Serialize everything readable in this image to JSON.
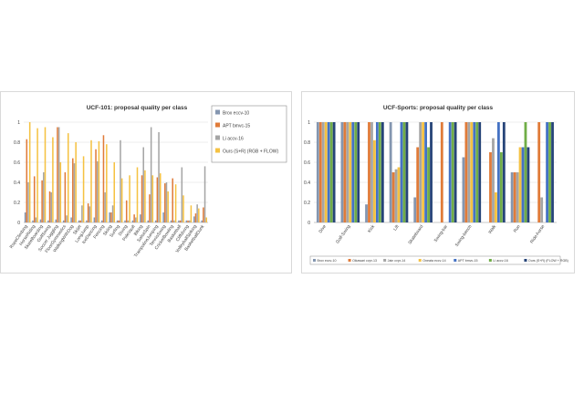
{
  "chart_data": [
    {
      "type": "bar",
      "title": "UCF-101: proposal quality per class",
      "xlabel": "",
      "ylabel": "",
      "ylim": [
        0,
        1
      ],
      "yticks": [
        0,
        0.2,
        0.4,
        0.6,
        0.8,
        1
      ],
      "grid": true,
      "legend": "right",
      "categories": [
        "RopeClimbing",
        "HorseRiding",
        "SkateBoarding",
        "GolfSwing",
        "Soccer Juggling",
        "FloorGymnastics",
        "WalkingWithDog",
        "Skijet",
        "LongJump",
        "IceDancing",
        "Fencing",
        "Skiing",
        "Surfing",
        "Diving",
        "PoleVault",
        "Biking",
        "SalsaSpin",
        "TrampolineJumping",
        "TennisSwing",
        "CricketBowling",
        "Basketball",
        "Cliffdiving",
        "VolleyballSpiking",
        "BasketballDunk"
      ],
      "series": [
        {
          "name": "Brox eccv-10",
          "color": "#8496b0",
          "values": [
            0.1,
            0.02,
            0.03,
            0.02,
            0.03,
            0.02,
            0.05,
            0.02,
            0.02,
            0.05,
            0.02,
            0.1,
            0.02,
            0.02,
            0.02,
            0.08,
            0.02,
            0.02,
            0.1,
            0.02,
            0.02,
            0.02,
            0.06,
            0.02
          ]
        },
        {
          "name": "APT bmvc-15",
          "color": "#e07b39",
          "values": [
            0.83,
            0.46,
            0.42,
            0.31,
            0.95,
            0.5,
            0.64,
            0.02,
            0.19,
            0.73,
            0.87,
            0.1,
            0.02,
            0.22,
            0.08,
            0.47,
            0.28,
            0.45,
            0.39,
            0.44,
            0.02,
            0.02,
            0.09,
            0.15
          ]
        },
        {
          "name": "Li accv-16",
          "color": "#a5a5a5",
          "values": [
            0.4,
            0.05,
            0.5,
            0.3,
            0.95,
            0.07,
            0.59,
            0.17,
            0.16,
            0.61,
            0.3,
            0.17,
            0.82,
            0.02,
            0.05,
            0.75,
            0.95,
            0.9,
            0.4,
            0.02,
            0.55,
            0.02,
            0.18,
            0.56
          ]
        },
        {
          "name": "Ours (S+R) (RGB + FLOW)",
          "color": "#f5c242",
          "values": [
            1.0,
            0.94,
            0.95,
            0.85,
            0.6,
            0.89,
            0.8,
            0.66,
            0.82,
            0.81,
            0.78,
            0.6,
            0.44,
            0.47,
            0.55,
            0.52,
            0.47,
            0.49,
            0.31,
            0.38,
            0.27,
            0.17,
            0.14,
            0.05
          ]
        }
      ]
    },
    {
      "type": "bar",
      "title": "UCF-Sports: proposal quality per class",
      "xlabel": "",
      "ylabel": "",
      "ylim": [
        0,
        1
      ],
      "yticks": [
        0,
        0.2,
        0.4,
        0.6,
        0.8,
        1
      ],
      "grid": true,
      "legend": "bottom",
      "categories": [
        "Dive",
        "Golf-Swing",
        "Kick",
        "Lift",
        "Skateboard",
        "Swing-bar",
        "Swing-bench",
        "Walk",
        "Run",
        "Ride-horse"
      ],
      "series": [
        {
          "name": "Brox eccv-10",
          "color": "#8496b0",
          "values": [
            1.0,
            1.0,
            0.18,
            1.0,
            0.25,
            0.0,
            0.65,
            0.0,
            0.5,
            0.0
          ]
        },
        {
          "name": "Oikawari cvpr-13",
          "color": "#e07b39",
          "values": [
            1.0,
            1.0,
            1.0,
            0.5,
            0.75,
            1.0,
            1.0,
            0.7,
            0.5,
            1.0
          ]
        },
        {
          "name": "Jain cvpr-14",
          "color": "#a5a5a5",
          "values": [
            1.0,
            1.0,
            1.0,
            0.53,
            1.0,
            0.0,
            1.0,
            0.84,
            0.5,
            0.25
          ]
        },
        {
          "name": "Oneata eccv-14",
          "color": "#f5c242",
          "values": [
            1.0,
            1.0,
            0.82,
            0.55,
            1.0,
            0.0,
            1.0,
            0.3,
            0.75,
            0.0
          ]
        },
        {
          "name": "APT bmvc-15",
          "color": "#4472c4",
          "values": [
            1.0,
            1.0,
            1.0,
            1.0,
            1.0,
            1.0,
            1.0,
            1.0,
            0.75,
            1.0
          ]
        },
        {
          "name": "Li accv-16",
          "color": "#70ad47",
          "values": [
            1.0,
            1.0,
            1.0,
            1.0,
            0.75,
            1.0,
            1.0,
            0.7,
            1.0,
            1.0
          ]
        },
        {
          "name": "Ours (S+R) (FLOW + RGB)",
          "color": "#264478",
          "values": [
            1.0,
            1.0,
            1.0,
            1.0,
            1.0,
            1.0,
            1.0,
            1.0,
            0.75,
            1.0
          ]
        }
      ]
    }
  ]
}
